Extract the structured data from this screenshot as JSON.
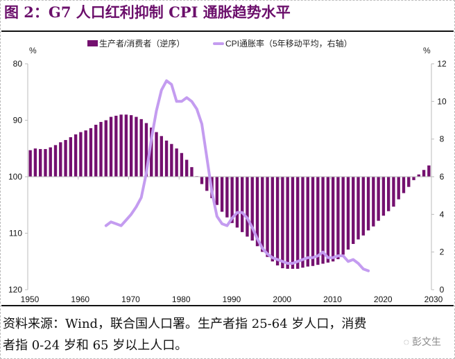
{
  "title": "图 2：G7 人口红利抑制 CPI 通胀趋势水平",
  "note": {
    "line1": "资料来源：Wind，联合国人口署。生产者指 25-64 岁人口，消费",
    "line2": "者指 0-24 岁和 65 岁以上人口。"
  },
  "watermark": "彭文生",
  "colors": {
    "bars": "#74106f",
    "line": "#c49cf0",
    "title": "#6b0f6b"
  },
  "chart_data": {
    "type": "bar+line",
    "title": "G7 人口红利抑制 CPI 通胀趋势水平",
    "left_unit": "%",
    "right_unit": "%",
    "left_axis": {
      "ticks": [
        "80",
        "90",
        "100",
        "110",
        "120"
      ],
      "range": [
        80,
        120
      ],
      "inverted": true
    },
    "right_axis": {
      "ticks": [
        "12",
        "10",
        "8",
        "6",
        "4",
        "2",
        "0"
      ],
      "range": [
        0,
        12
      ]
    },
    "x_ticks": [
      "1950",
      "1960",
      "1970",
      "1980",
      "1990",
      "2000",
      "2010",
      "2020",
      "2030"
    ],
    "xlim": [
      1950,
      2030
    ],
    "series": [
      {
        "name": "生产者/消费者（逆序）",
        "type": "bar",
        "axis": "left",
        "x": [
          1950,
          1951,
          1952,
          1953,
          1954,
          1955,
          1956,
          1957,
          1958,
          1959,
          1960,
          1961,
          1962,
          1963,
          1964,
          1965,
          1966,
          1967,
          1968,
          1969,
          1970,
          1971,
          1972,
          1973,
          1974,
          1975,
          1976,
          1977,
          1978,
          1979,
          1980,
          1981,
          1982,
          1983,
          1984,
          1985,
          1986,
          1987,
          1988,
          1989,
          1990,
          1991,
          1992,
          1993,
          1994,
          1995,
          1996,
          1997,
          1998,
          1999,
          2000,
          2001,
          2002,
          2003,
          2004,
          2005,
          2006,
          2007,
          2008,
          2009,
          2010,
          2011,
          2012,
          2013,
          2014,
          2015,
          2016,
          2017,
          2018,
          2019,
          2020,
          2021,
          2022,
          2023,
          2024,
          2025,
          2026,
          2027,
          2028,
          2029
        ],
        "values": [
          95.3,
          95.0,
          95.1,
          95.1,
          94.8,
          94.4,
          93.9,
          93.5,
          93.0,
          92.5,
          92.1,
          91.8,
          91.4,
          90.8,
          90.3,
          90.0,
          89.4,
          89.2,
          89.0,
          89.0,
          89.1,
          89.4,
          89.8,
          90.5,
          91.3,
          92.1,
          92.8,
          93.6,
          94.2,
          95.0,
          95.8,
          97.0,
          98.3,
          99.9,
          101.3,
          102.5,
          103.8,
          105.0,
          106.2,
          107.2,
          108.2,
          109.0,
          109.8,
          110.6,
          111.3,
          112.3,
          113.3,
          114.2,
          115.0,
          115.7,
          116.2,
          116.3,
          116.3,
          116.3,
          116.1,
          115.9,
          115.8,
          115.6,
          115.4,
          115.2,
          115.0,
          114.6,
          113.8,
          112.9,
          111.9,
          111.1,
          110.4,
          109.5,
          108.8,
          107.8,
          106.9,
          106.1,
          105.3,
          104.0,
          102.9,
          101.8,
          100.6,
          99.6,
          98.8,
          98.0
        ]
      },
      {
        "name": "CPI通胀率（5年移动平均，右轴）",
        "type": "line",
        "axis": "right",
        "x": [
          1965,
          1966,
          1967,
          1968,
          1969,
          1970,
          1971,
          1972,
          1973,
          1974,
          1975,
          1976,
          1977,
          1978,
          1979,
          1980,
          1981,
          1982,
          1983,
          1984,
          1985,
          1986,
          1987,
          1988,
          1989,
          1990,
          1991,
          1992,
          1993,
          1994,
          1995,
          1996,
          1997,
          1998,
          1999,
          2000,
          2001,
          2002,
          2003,
          2004,
          2005,
          2006,
          2007,
          2008,
          2009,
          2010,
          2011,
          2012,
          2013,
          2014,
          2015,
          2016,
          2017
        ],
        "values": [
          3.4,
          3.6,
          3.5,
          3.4,
          3.7,
          4.0,
          4.4,
          4.9,
          6.2,
          8.0,
          9.5,
          10.6,
          11.1,
          10.9,
          10.0,
          10.0,
          10.2,
          10.0,
          9.6,
          8.8,
          7.0,
          5.2,
          3.9,
          3.5,
          3.4,
          3.8,
          4.1,
          4.1,
          3.8,
          3.3,
          2.7,
          2.2,
          1.9,
          1.7,
          1.6,
          1.5,
          1.4,
          1.4,
          1.5,
          1.6,
          1.7,
          1.7,
          1.8,
          2.0,
          1.7,
          1.7,
          1.8,
          1.8,
          1.5,
          1.6,
          1.4,
          1.1,
          1.0
        ]
      }
    ]
  }
}
